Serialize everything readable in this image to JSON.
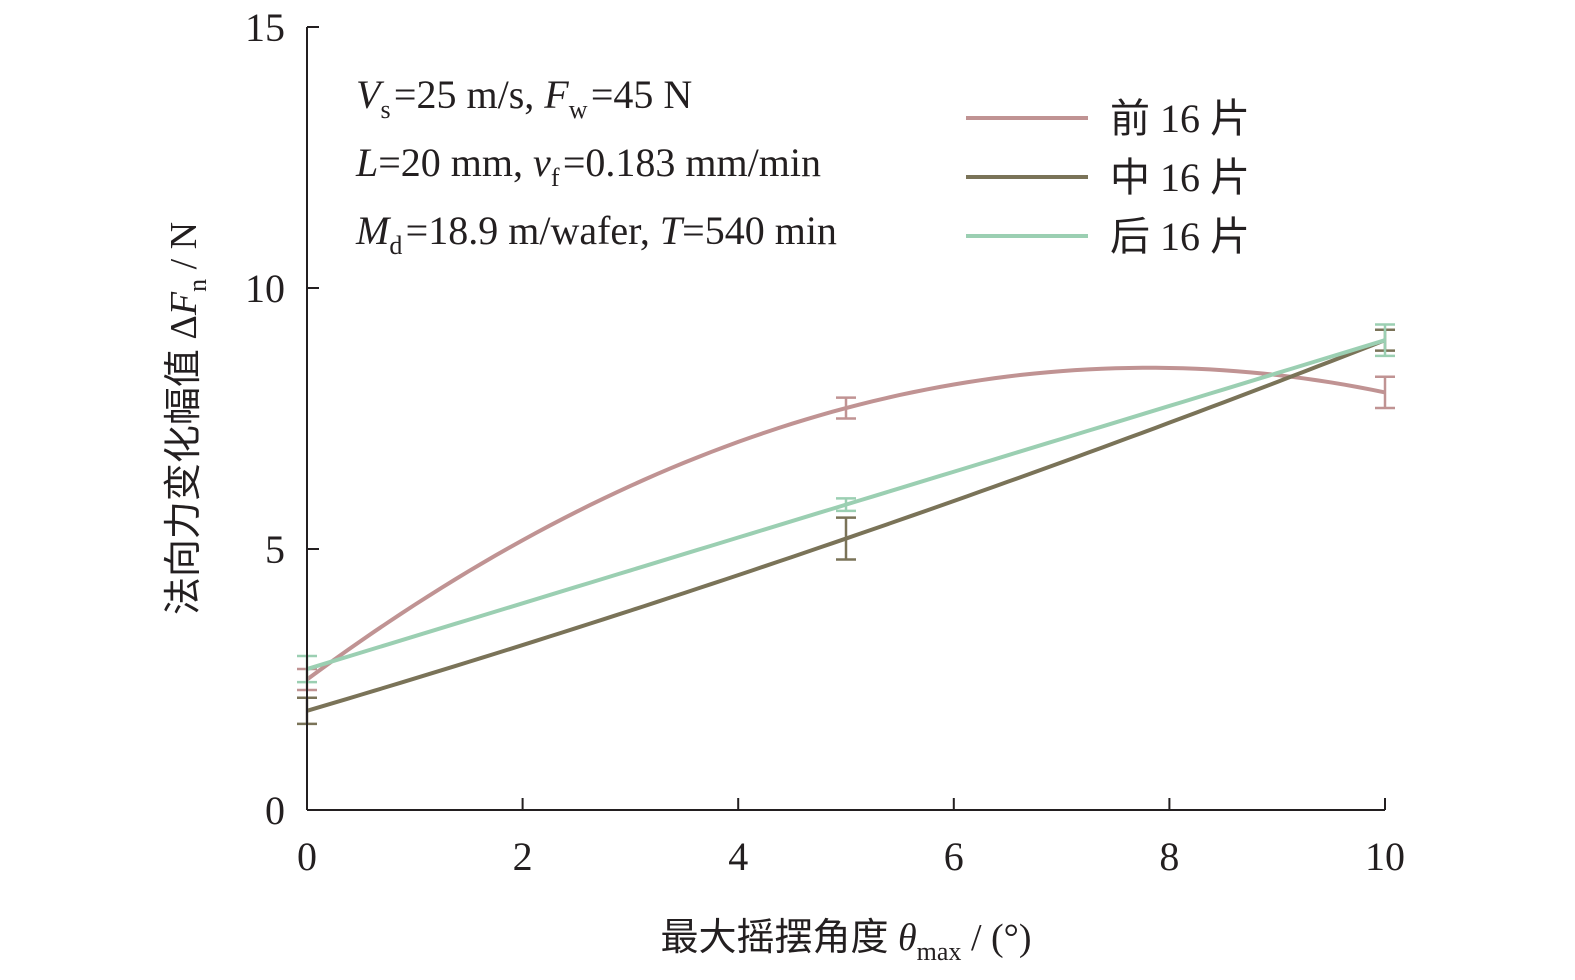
{
  "chart_data": {
    "type": "line",
    "x": [
      0,
      5,
      10
    ],
    "xlim": [
      0,
      10
    ],
    "ylim": [
      0,
      15
    ],
    "xticks": [
      0,
      2,
      4,
      6,
      8,
      10
    ],
    "yticks": [
      0,
      5,
      10,
      15
    ],
    "xlabel": {
      "main": "最大摇摆角度 ",
      "symbol": "θ",
      "sub": "max",
      "unit": " / (°)"
    },
    "ylabel": {
      "main": "法向力变化幅值 Δ",
      "symbol": "F",
      "sub": "n",
      "unit": " / N"
    },
    "conditions": [
      [
        {
          "t": "V",
          "i": true
        },
        {
          "t": "s",
          "sub": true
        },
        {
          "t": "=25 m/s, "
        },
        {
          "t": "F",
          "i": true
        },
        {
          "t": "w",
          "sub": true
        },
        {
          "t": "=45 N"
        }
      ],
      [
        {
          "t": "L",
          "i": true
        },
        {
          "t": "=20 mm, "
        },
        {
          "t": "v",
          "i": true
        },
        {
          "t": "f",
          "sub": true
        },
        {
          "t": "=0.183 mm/min"
        }
      ],
      [
        {
          "t": "M",
          "i": true
        },
        {
          "t": "d",
          "sub": true
        },
        {
          "t": "=18.9 m/wafer, "
        },
        {
          "t": "T",
          "i": true
        },
        {
          "t": "=540 min"
        }
      ]
    ],
    "legend_position": "top-right",
    "grid": false,
    "series": [
      {
        "name": "前 16 片",
        "color": "#c09393",
        "values": [
          2.5,
          7.7,
          8.0
        ],
        "errors": [
          0.2,
          0.2,
          0.3
        ]
      },
      {
        "name": "中 16 片",
        "color": "#7a7358",
        "values": [
          1.9,
          5.2,
          9.0
        ],
        "errors": [
          0.25,
          0.4,
          0.2
        ]
      },
      {
        "name": "后 16 片",
        "color": "#9bcfb2",
        "values": [
          2.7,
          5.85,
          9.0
        ],
        "errors": [
          0.25,
          0.12,
          0.3
        ]
      }
    ]
  }
}
